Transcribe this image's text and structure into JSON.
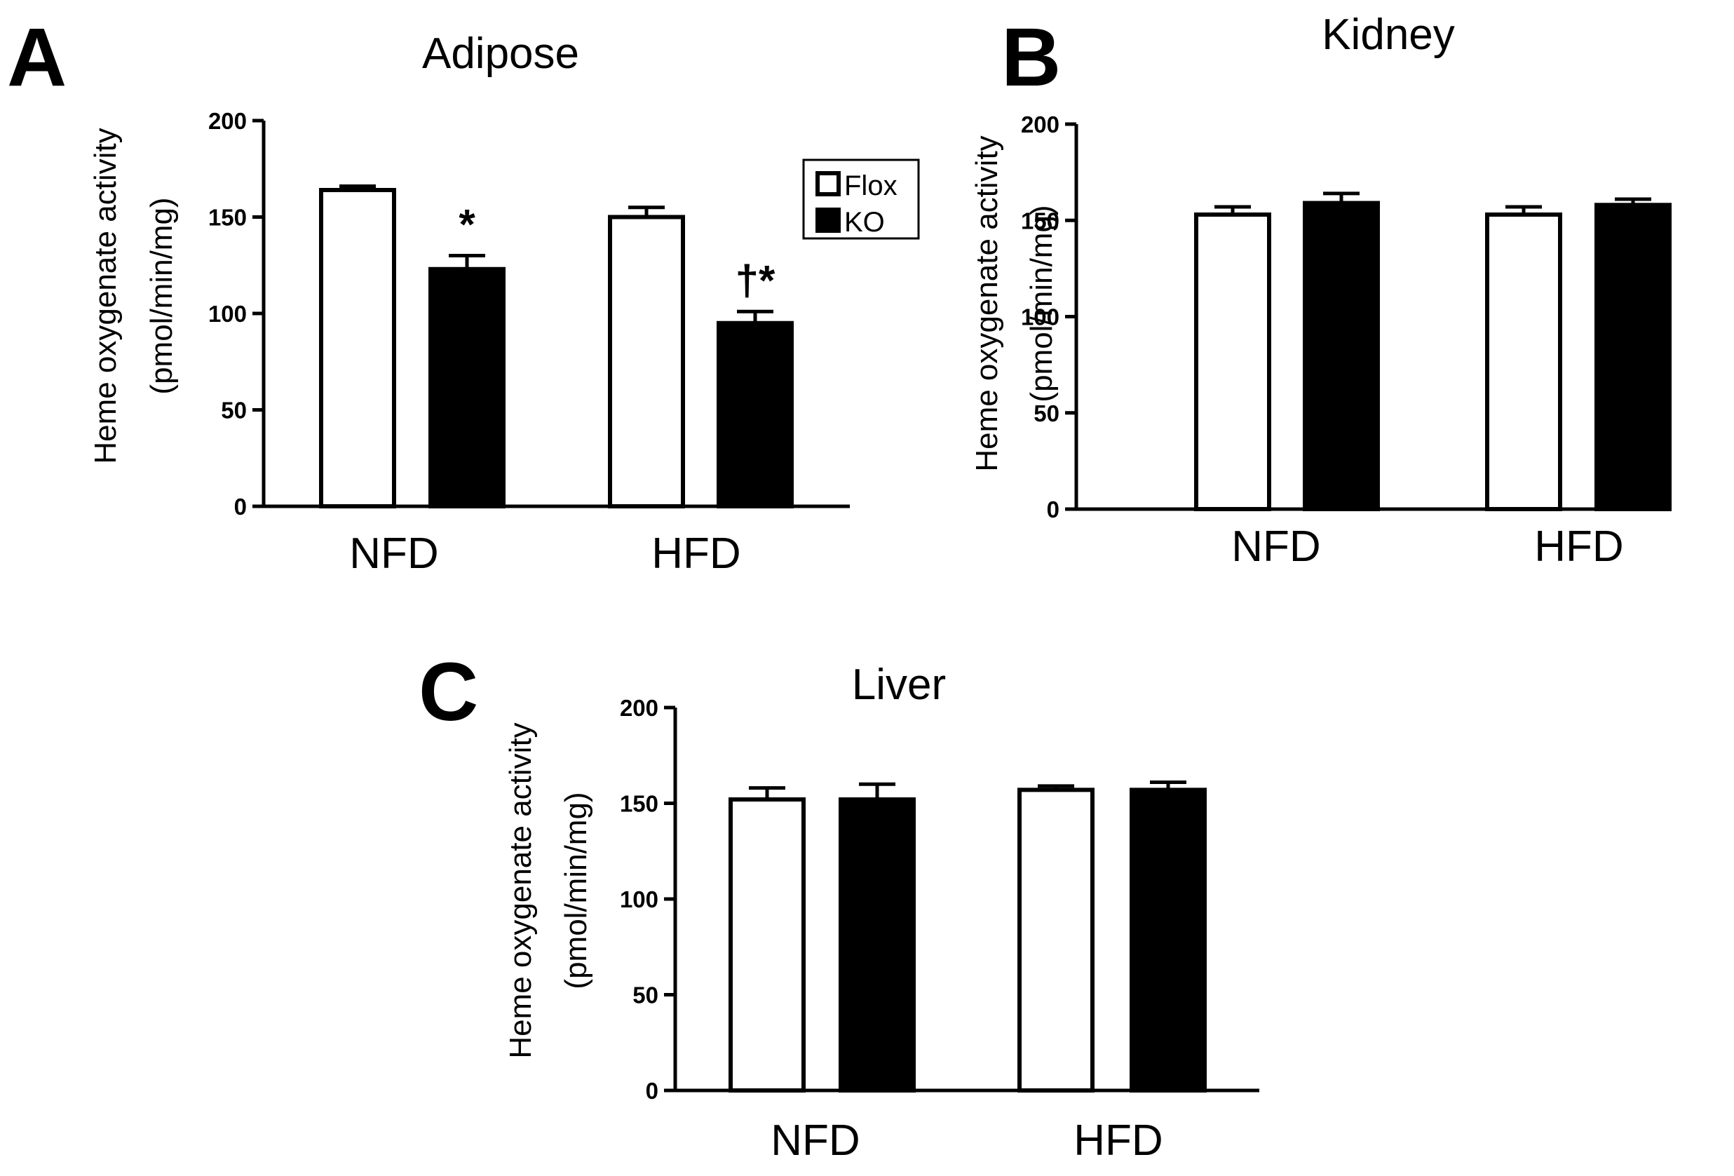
{
  "figure": {
    "panels": [
      {
        "letter": "A",
        "title": "Adipose"
      },
      {
        "letter": "B",
        "title": "Kidney"
      },
      {
        "letter": "C",
        "title": "Liver"
      }
    ]
  },
  "chart_data": [
    {
      "type": "bar",
      "title": "Adipose",
      "panel": "A",
      "xlabel": "",
      "ylabel_lines": [
        "Heme oxygenate activity",
        "(pmol/min/mg)"
      ],
      "categories": [
        "NFD",
        "HFD"
      ],
      "yticks": [
        0,
        50,
        100,
        150,
        200
      ],
      "ylim": [
        0,
        200
      ],
      "series": [
        {
          "name": "Flox",
          "color": "#ffffff",
          "values": [
            164,
            150
          ],
          "errors": [
            2,
            5
          ]
        },
        {
          "name": "KO",
          "color": "#000000",
          "values": [
            123,
            95
          ],
          "errors": [
            7,
            6
          ]
        }
      ],
      "annotations": [
        {
          "series": "KO",
          "category": "NFD",
          "text": "*"
        },
        {
          "series": "KO",
          "category": "HFD",
          "text": "†*"
        }
      ],
      "legend": {
        "position": "top-right",
        "entries": [
          "Flox",
          "KO"
        ]
      }
    },
    {
      "type": "bar",
      "title": "Kidney",
      "panel": "B",
      "xlabel": "",
      "ylabel_lines": [
        "Heme oxygenate activity",
        "(pmol/min/mg)"
      ],
      "categories": [
        "NFD",
        "HFD"
      ],
      "yticks": [
        0,
        50,
        100,
        150,
        200
      ],
      "ylim": [
        0,
        200
      ],
      "series": [
        {
          "name": "Flox",
          "color": "#ffffff",
          "values": [
            153,
            153
          ],
          "errors": [
            4,
            4
          ]
        },
        {
          "name": "KO",
          "color": "#000000",
          "values": [
            159,
            158
          ],
          "errors": [
            5,
            3
          ]
        }
      ],
      "annotations": [],
      "legend": null
    },
    {
      "type": "bar",
      "title": "Liver",
      "panel": "C",
      "xlabel": "",
      "ylabel_lines": [
        "Heme oxygenate activity",
        "(pmol/min/mg)"
      ],
      "categories": [
        "NFD",
        "HFD"
      ],
      "yticks": [
        0,
        50,
        100,
        150,
        200
      ],
      "ylim": [
        0,
        200
      ],
      "series": [
        {
          "name": "Flox",
          "color": "#ffffff",
          "values": [
            152,
            157
          ],
          "errors": [
            6,
            2
          ]
        },
        {
          "name": "KO",
          "color": "#000000",
          "values": [
            152,
            157
          ],
          "errors": [
            8,
            4
          ]
        }
      ],
      "annotations": [],
      "legend": null
    }
  ]
}
